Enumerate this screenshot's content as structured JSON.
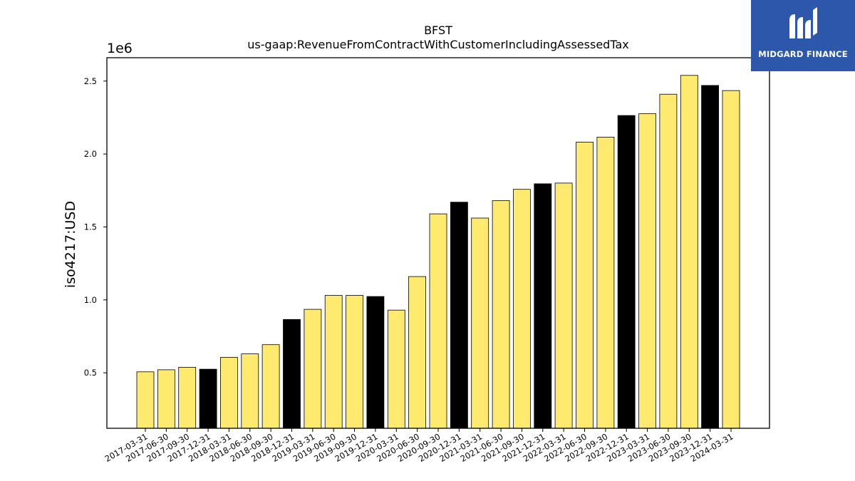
{
  "colors": {
    "bar_regular": "#ffea70",
    "bar_year_end": "#000000",
    "bar_edge": "#000000",
    "logo_background": "#2c57aa",
    "logo_foreground": "#ffffff"
  },
  "logo": {
    "text": "MIDGARD FINANCE"
  },
  "chart_data": {
    "type": "bar",
    "title": "BFST",
    "subtitle": "us-gaap:RevenueFromContractWithCustomerIncludingAssessedTax",
    "ylabel": "iso4217:USD",
    "xlabel": "",
    "y_offset_label": "1e6",
    "ylim": [
      0.12,
      2.66
    ],
    "yticks": [
      0.5,
      1.0,
      1.5,
      2.0,
      2.5
    ],
    "ytick_labels": [
      "0.5",
      "1.0",
      "1.5",
      "2.0",
      "2.5"
    ],
    "grid": false,
    "categories": [
      "2017-03-31",
      "2017-06-30",
      "2017-09-30",
      "2017-12-31",
      "2018-03-31",
      "2018-06-30",
      "2018-09-30",
      "2018-12-31",
      "2019-03-31",
      "2019-06-30",
      "2019-09-30",
      "2019-12-31",
      "2020-03-31",
      "2020-06-30",
      "2020-09-30",
      "2020-12-31",
      "2021-03-31",
      "2021-06-30",
      "2021-09-30",
      "2021-12-31",
      "2022-03-31",
      "2022-06-30",
      "2022-09-30",
      "2022-12-31",
      "2023-03-31",
      "2023-06-30",
      "2023-09-30",
      "2023-12-31",
      "2024-03-31"
    ],
    "values": [
      0.507,
      0.521,
      0.538,
      0.525,
      0.606,
      0.63,
      0.693,
      0.866,
      0.935,
      1.031,
      1.031,
      1.023,
      0.93,
      1.16,
      1.59,
      1.67,
      1.561,
      1.68,
      1.758,
      1.796,
      1.801,
      2.081,
      2.116,
      2.264,
      2.276,
      2.41,
      2.539,
      2.47,
      2.435
    ],
    "year_end": [
      false,
      false,
      false,
      true,
      false,
      false,
      false,
      true,
      false,
      false,
      false,
      true,
      false,
      false,
      false,
      true,
      false,
      false,
      false,
      true,
      false,
      false,
      false,
      true,
      false,
      false,
      false,
      true,
      false
    ]
  }
}
